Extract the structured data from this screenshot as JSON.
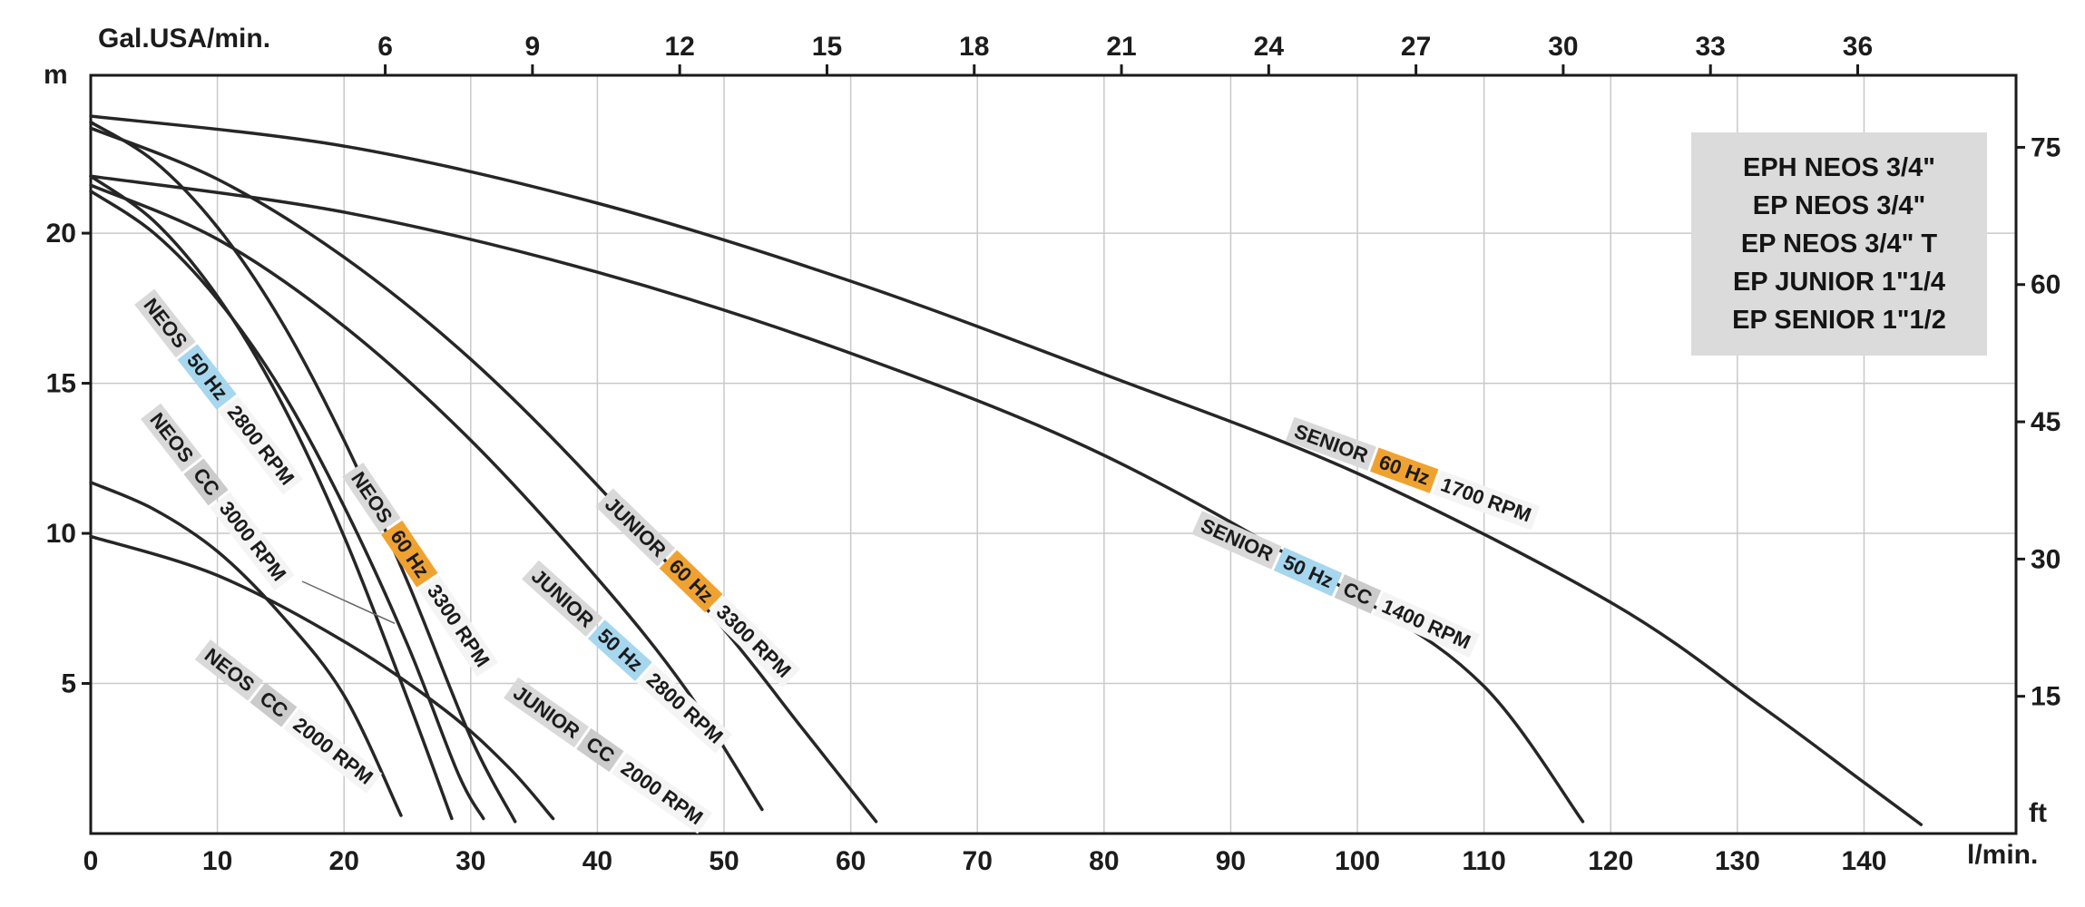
{
  "axis_titles": {
    "top": "Gal.USA/min.",
    "left": "m",
    "right": "ft",
    "bottom": "l/min."
  },
  "legend": {
    "lines": [
      "EPH NEOS 3/4\"",
      "EP NEOS 3/4\"",
      "EP NEOS 3/4\" T",
      "EP JUNIOR 1\"1/4",
      "EP SENIOR 1\"1/2"
    ]
  },
  "colors": {
    "curve": "#262626",
    "grid": "#c9c9c9",
    "frame": "#1a1a1a",
    "text": "#1c1c1c",
    "label_model_bg": "#d9d9d9",
    "label_50hz_bg": "#a6d7ef",
    "label_60hz_bg": "#f0a231",
    "label_cc_bg": "#cbcbcb",
    "label_rpm_bg": "#f4f4f4",
    "legend_bg": "#dbdbdb",
    "leader": "#666666"
  },
  "chart_data": {
    "type": "line",
    "title": "",
    "x_axis_bottom": {
      "label": "l/min.",
      "ticks": [
        0,
        10,
        20,
        30,
        40,
        50,
        60,
        70,
        80,
        90,
        100,
        110,
        120,
        130,
        140
      ],
      "range": [
        0,
        152
      ]
    },
    "x_axis_top": {
      "label": "Gal.USA/min.",
      "ticks": [
        6,
        9,
        12,
        15,
        18,
        21,
        24,
        27,
        30,
        33,
        36
      ],
      "lpm_per_gal_scale": 3.875
    },
    "y_axis_left": {
      "label": "m",
      "ticks": [
        5,
        10,
        15,
        20
      ],
      "range": [
        0,
        25.26
      ]
    },
    "y_axis_right": {
      "label": "ft",
      "ticks": [
        15,
        30,
        45,
        60,
        75
      ],
      "m_per_ft": 0.3048
    },
    "grid": {
      "vertical_every": 10,
      "horizontal_every": 5,
      "on": true
    },
    "legend_position": "top-right",
    "series": [
      {
        "name": "NEOS 50Hz 2800 RPM",
        "points": [
          [
            0,
            21.9
          ],
          [
            5,
            20.4
          ],
          [
            10,
            17.9
          ],
          [
            15,
            14.4
          ],
          [
            20,
            9.9
          ],
          [
            25,
            4.5
          ],
          [
            28.5,
            0.5
          ]
        ],
        "label": {
          "x": 10.1,
          "y": 14.7,
          "rot": 52,
          "parts": [
            {
              "text": "NEOS",
              "kind": "model"
            },
            {
              "text": "50 Hz",
              "kind": "hz50"
            },
            {
              "text": "2800 RPM",
              "kind": "rpm"
            }
          ]
        }
      },
      {
        "name": "NEOS CC 3000 RPM",
        "points": [
          [
            0,
            21.4
          ],
          [
            5,
            20.0
          ],
          [
            10,
            17.8
          ],
          [
            15,
            14.8
          ],
          [
            20,
            10.9
          ],
          [
            25,
            6.3
          ],
          [
            29,
            2.0
          ],
          [
            31,
            0.5
          ]
        ],
        "leader": {
          "from": [
            16.7,
            8.4
          ],
          "to": [
            24,
            7.0
          ]
        },
        "label": {
          "x": 10.0,
          "y": 11.2,
          "rot": 52,
          "parts": [
            {
              "text": "NEOS",
              "kind": "model"
            },
            {
              "text": "CC",
              "kind": "cc"
            },
            {
              "text": "3000 RPM",
              "kind": "rpm"
            }
          ]
        }
      },
      {
        "name": "NEOS 60Hz 3300 RPM",
        "points": [
          [
            0,
            23.7
          ],
          [
            5,
            22.4
          ],
          [
            10,
            20.2
          ],
          [
            15,
            17.1
          ],
          [
            20,
            13.1
          ],
          [
            25,
            8.4
          ],
          [
            30,
            3.2
          ],
          [
            33.5,
            0.4
          ]
        ],
        "label": {
          "x": 26.0,
          "y": 8.8,
          "rot": 56,
          "parts": [
            {
              "text": "NEOS",
              "kind": "model"
            },
            {
              "text": "60 Hz",
              "kind": "hz60"
            },
            {
              "text": "3300 RPM",
              "kind": "rpm"
            }
          ]
        }
      },
      {
        "name": "NEOS CC 2000 RPM",
        "points": [
          [
            0,
            11.7
          ],
          [
            5,
            10.8
          ],
          [
            10,
            9.4
          ],
          [
            15,
            7.3
          ],
          [
            20,
            4.6
          ],
          [
            24.5,
            0.6
          ]
        ],
        "label": {
          "x": 15.6,
          "y": 3.9,
          "rot": 38,
          "parts": [
            {
              "text": "NEOS",
              "kind": "model"
            },
            {
              "text": "CC",
              "kind": "cc"
            },
            {
              "text": "2000 RPM",
              "kind": "rpm"
            }
          ]
        }
      },
      {
        "name": "JUNIOR 60Hz 3300 RPM",
        "points": [
          [
            0,
            23.5
          ],
          [
            10,
            21.8
          ],
          [
            20,
            19.2
          ],
          [
            30,
            15.8
          ],
          [
            40,
            11.6
          ],
          [
            50,
            6.8
          ],
          [
            56,
            3.6
          ],
          [
            62,
            0.4
          ]
        ],
        "label": {
          "x": 47.9,
          "y": 8.2,
          "rot": 44,
          "parts": [
            {
              "text": "JUNIOR",
              "kind": "model"
            },
            {
              "text": "60 Hz",
              "kind": "hz60"
            },
            {
              "text": "3300 RPM",
              "kind": "rpm"
            }
          ]
        }
      },
      {
        "name": "JUNIOR 50Hz 2800 RPM",
        "points": [
          [
            0,
            21.6
          ],
          [
            10,
            19.8
          ],
          [
            20,
            16.9
          ],
          [
            30,
            13.1
          ],
          [
            40,
            8.5
          ],
          [
            47,
            4.8
          ],
          [
            53,
            0.8
          ]
        ],
        "label": {
          "x": 42.3,
          "y": 5.9,
          "rot": 42,
          "parts": [
            {
              "text": "JUNIOR",
              "kind": "model"
            },
            {
              "text": "50 Hz",
              "kind": "hz50"
            },
            {
              "text": "2800 RPM",
              "kind": "rpm"
            }
          ]
        }
      },
      {
        "name": "JUNIOR CC 2000 RPM",
        "points": [
          [
            0,
            9.9
          ],
          [
            10,
            8.6
          ],
          [
            20,
            6.4
          ],
          [
            28,
            4.1
          ],
          [
            33,
            2.2
          ],
          [
            36.5,
            0.5
          ]
        ],
        "label": {
          "x": 40.8,
          "y": 2.6,
          "rot": 35,
          "parts": [
            {
              "text": "JUNIOR",
              "kind": "model"
            },
            {
              "text": "CC",
              "kind": "cc"
            },
            {
              "text": "2000 RPM",
              "kind": "rpm"
            }
          ]
        }
      },
      {
        "name": "SENIOR 60Hz 1700 RPM",
        "points": [
          [
            0,
            23.9
          ],
          [
            20,
            22.9
          ],
          [
            40,
            21.0
          ],
          [
            60,
            18.4
          ],
          [
            80,
            15.3
          ],
          [
            100,
            12.0
          ],
          [
            120,
            7.7
          ],
          [
            132,
            4.2
          ],
          [
            140,
            1.7
          ],
          [
            144.5,
            0.3
          ]
        ],
        "label": {
          "x": 104.4,
          "y": 12.0,
          "rot": 20,
          "parts": [
            {
              "text": "SENIOR",
              "kind": "model"
            },
            {
              "text": "60 Hz",
              "kind": "hz60"
            },
            {
              "text": "1700 RPM",
              "kind": "rpm"
            }
          ]
        }
      },
      {
        "name": "SENIOR 50Hz CC 1400 RPM",
        "points": [
          [
            0,
            21.9
          ],
          [
            20,
            20.7
          ],
          [
            40,
            18.7
          ],
          [
            60,
            16.0
          ],
          [
            80,
            12.6
          ],
          [
            100,
            7.9
          ],
          [
            110,
            4.9
          ],
          [
            117.8,
            0.4
          ]
        ],
        "label": {
          "x": 98.3,
          "y": 8.3,
          "rot": 24,
          "parts": [
            {
              "text": "SENIOR",
              "kind": "model"
            },
            {
              "text": "50 Hz",
              "kind": "hz50"
            },
            {
              "text": "CC",
              "kind": "cc"
            },
            {
              "text": "1400 RPM",
              "kind": "rpm"
            }
          ]
        }
      }
    ]
  }
}
